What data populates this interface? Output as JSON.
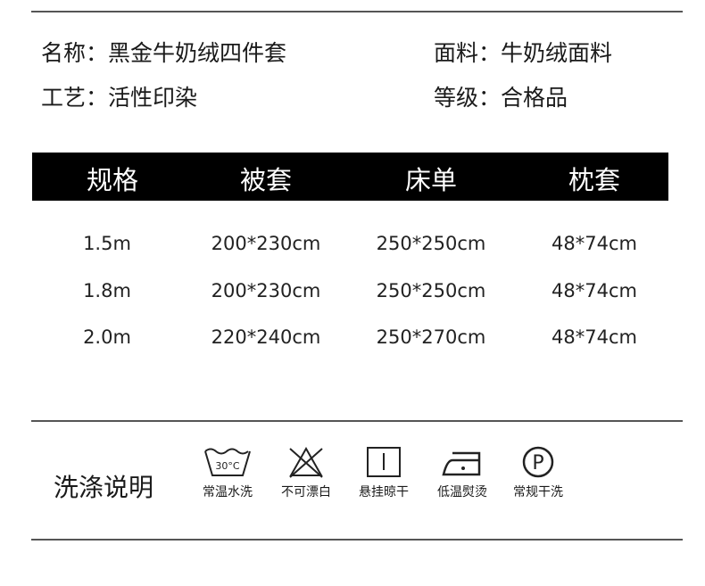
{
  "info": {
    "name_label": "名称：",
    "name_value": "黑金牛奶绒四件套",
    "fabric_label": "面料：",
    "fabric_value": "牛奶绒面料",
    "craft_label": "工艺：",
    "craft_value": "活性印染",
    "grade_label": "等级：",
    "grade_value": "合格品"
  },
  "table": {
    "headers": [
      "规格",
      "被套",
      "床单",
      "枕套"
    ],
    "rows": [
      [
        "1.5m",
        "200*230cm",
        "250*250cm",
        "48*74cm"
      ],
      [
        "1.8m",
        "200*230cm",
        "250*250cm",
        "48*74cm"
      ],
      [
        "2.0m",
        "220*240cm",
        "250*270cm",
        "48*74cm"
      ]
    ]
  },
  "care": {
    "title": "洗涤说明",
    "items": [
      {
        "icon": "wash-30c-icon",
        "label": "常温水洗",
        "temp": "30°C"
      },
      {
        "icon": "no-bleach-icon",
        "label": "不可漂白"
      },
      {
        "icon": "hang-dry-icon",
        "label": "悬挂晾干"
      },
      {
        "icon": "low-iron-icon",
        "label": "低温熨烫"
      },
      {
        "icon": "dry-clean-p-icon",
        "label": "常规干洗",
        "letter": "P"
      }
    ]
  }
}
